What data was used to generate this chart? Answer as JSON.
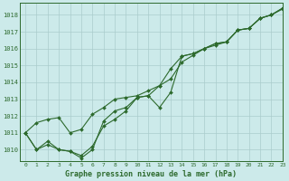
{
  "background_color": "#cceaea",
  "plot_bg_color": "#cceaea",
  "grid_color": "#aacccc",
  "line_color": "#2d6a2d",
  "title": "Graphe pression niveau de la mer (hPa)",
  "xlim": [
    -0.5,
    23
  ],
  "ylim": [
    1009.3,
    1018.7
  ],
  "yticks": [
    1010,
    1011,
    1012,
    1013,
    1014,
    1015,
    1016,
    1017,
    1018
  ],
  "xticks": [
    0,
    1,
    2,
    3,
    4,
    5,
    6,
    7,
    8,
    9,
    10,
    11,
    12,
    13,
    14,
    15,
    16,
    17,
    18,
    19,
    20,
    21,
    22,
    23
  ],
  "series": [
    {
      "x": [
        0,
        1,
        2,
        3,
        4,
        5,
        6,
        7,
        8,
        9,
        10,
        11,
        12,
        13,
        14,
        15,
        16,
        17,
        18,
        19,
        20,
        21,
        22,
        23
      ],
      "y": [
        1011.0,
        1011.6,
        1011.8,
        1011.9,
        1011.0,
        1011.2,
        1012.1,
        1012.5,
        1013.0,
        1013.1,
        1013.2,
        1013.5,
        1013.8,
        1014.2,
        1015.2,
        1015.6,
        1016.0,
        1016.2,
        1016.4,
        1017.1,
        1017.2,
        1017.8,
        1018.0,
        1018.4
      ]
    },
    {
      "x": [
        0,
        1,
        2,
        3,
        4,
        5,
        6,
        7,
        8,
        9,
        10,
        11,
        12,
        13,
        14,
        15,
        16,
        17,
        18,
        19,
        20,
        21,
        22,
        23
      ],
      "y": [
        1011.0,
        1010.0,
        1010.5,
        1010.0,
        1009.9,
        1009.65,
        1010.2,
        1011.4,
        1011.8,
        1012.3,
        1013.1,
        1013.2,
        1012.5,
        1013.4,
        1015.55,
        1015.7,
        1016.0,
        1016.3,
        1016.4,
        1017.1,
        1017.2,
        1017.8,
        1018.0,
        1018.4
      ]
    },
    {
      "x": [
        0,
        1,
        2,
        3,
        4,
        5,
        6,
        7,
        8,
        9,
        10,
        11,
        12,
        13,
        14,
        15,
        16,
        17,
        18,
        19,
        20,
        21,
        22,
        23
      ],
      "y": [
        1011.0,
        1010.0,
        1010.3,
        1010.0,
        1009.9,
        1009.5,
        1010.0,
        1011.7,
        1012.3,
        1012.5,
        1013.1,
        1013.2,
        1013.8,
        1014.8,
        1015.55,
        1015.7,
        1016.0,
        1016.3,
        1016.4,
        1017.1,
        1017.2,
        1017.8,
        1018.0,
        1018.35
      ]
    }
  ]
}
